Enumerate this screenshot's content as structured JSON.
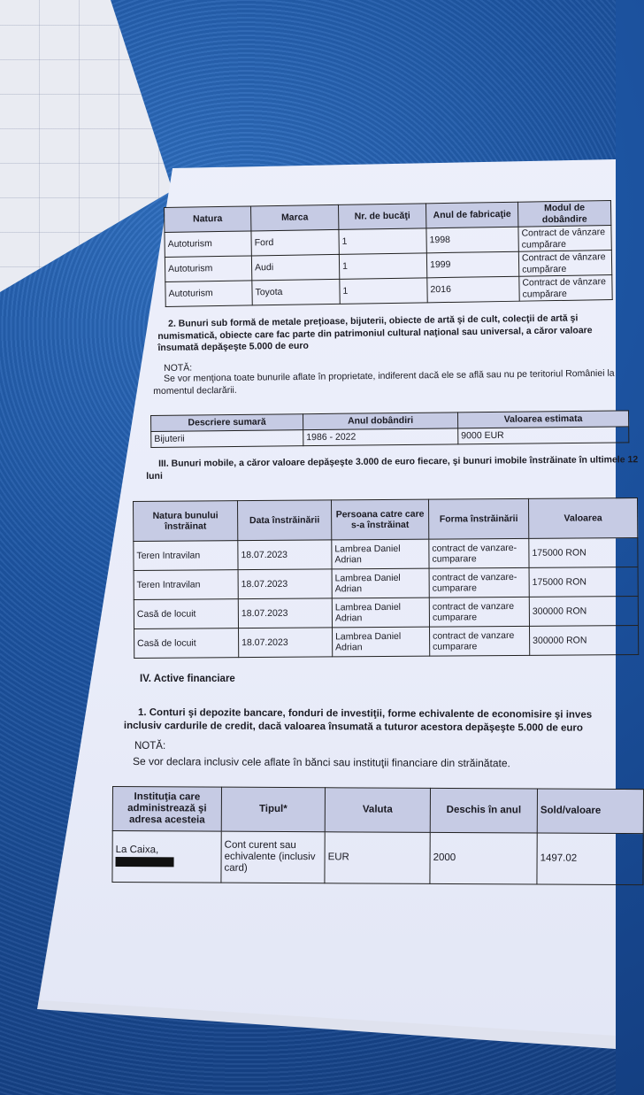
{
  "vehicles_table": {
    "headers": [
      "Natura",
      "Marca",
      "Nr. de bucăţi",
      "Anul de fabricaţie",
      "Modul de dobândire"
    ],
    "rows": [
      [
        "Autoturism",
        "Ford",
        "1",
        "1998",
        "Contract de vânzare cumpărare"
      ],
      [
        "Autoturism",
        "Audi",
        "1",
        "1999",
        "Contract de vânzare cumpărare"
      ],
      [
        "Autoturism",
        "Toyota",
        "1",
        "2016",
        "Contract de vânzare cumpărare"
      ]
    ]
  },
  "section2": {
    "heading": "2. Bunuri sub formă de metale preţioase, bijuterii, obiecte de artă şi de cult, colecţii de artă şi numismatică, obiecte care fac parte din patrimoniul cultural naţional sau universal, a căror valoare însumată depăşeşte 5.000 de euro",
    "note_label": "NOTĂ:",
    "note_text": "Se vor menţiona toate bunurile aflate în proprietate, indiferent dacă ele se află sau nu pe teritoriul României la momentul declarării."
  },
  "valuables_table": {
    "headers": [
      "Descriere sumară",
      "Anul dobândiri",
      "Valoarea estimata"
    ],
    "rows": [
      [
        "Bijuterii",
        "1986 - 2022",
        "9000 EUR"
      ]
    ]
  },
  "section3": {
    "heading": "III. Bunuri mobile, a căror valoare depăşeşte 3.000 de euro fiecare, şi bunuri imobile înstrăinate în ultimele 12 luni"
  },
  "alienated_table": {
    "headers": [
      "Natura bunului înstrăinat",
      "Data înstrăinării",
      "Persoana catre care s-a înstrăinat",
      "Forma înstrăinării",
      "Valoarea"
    ],
    "rows": [
      [
        "Teren Intravilan",
        "18.07.2023",
        "Lambrea Daniel Adrian",
        "contract de vanzare-cumparare",
        "175000 RON"
      ],
      [
        "Teren Intravilan",
        "18.07.2023",
        "Lambrea Daniel Adrian",
        "contract de vanzare-cumparare",
        "175000 RON"
      ],
      [
        "Casă de locuit",
        "18.07.2023",
        "Lambrea Daniel Adrian",
        "contract de vanzare cumparare",
        "300000 RON"
      ],
      [
        "Casă de locuit",
        "18.07.2023",
        "Lambrea Daniel Adrian",
        "contract de vanzare cumparare",
        "300000 RON"
      ]
    ]
  },
  "section4": {
    "heading": "IV. Active financiare",
    "sub_heading": "1. Conturi şi depozite bancare, fonduri de investiţii, forme echivalente de economisire şi inves inclusiv cardurile de credit, dacă valoarea însumată a tuturor acestora depăşeşte 5.000 de euro",
    "note_label": "NOTĂ:",
    "note_text": "Se vor declara inclusiv cele aflate în bănci sau instituţii financiare din străinătate."
  },
  "accounts_table": {
    "headers": [
      "Instituţia care administrează şi adresa acesteia",
      "Tipul*",
      "Valuta",
      "Deschis în anul",
      "Sold/valoare"
    ],
    "rows": [
      [
        "La Caixa,",
        "Cont curent sau echivalente (inclusiv card)",
        "EUR",
        "2000",
        "1497.02"
      ]
    ]
  }
}
